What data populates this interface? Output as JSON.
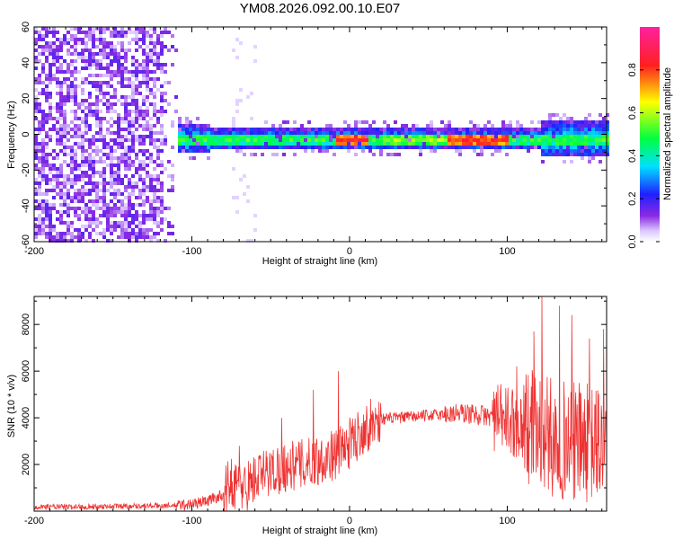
{
  "figure": {
    "title": "YM08.2026.092.00.10.E07"
  },
  "colors": {
    "snr_line": "#ee3333",
    "background": "#ffffff",
    "axis": "#000000",
    "colormap": [
      "#ffffff",
      "#dcc8ff",
      "#8a2be2",
      "#2020ff",
      "#00e0ff",
      "#00ff40",
      "#ffff00",
      "#ff2020",
      "#ff20a0"
    ]
  },
  "chart_data": [
    {
      "type": "heatmap",
      "name": "spectrogram",
      "xlabel": "Height of straight line (km)",
      "ylabel": "Frequency (Hz)",
      "xlim": [
        -200,
        163
      ],
      "ylim": [
        -60,
        60
      ],
      "xticks": [
        -200,
        -100,
        0,
        100
      ],
      "yticks": [
        -60,
        -40,
        -20,
        0,
        20,
        40,
        60
      ],
      "colorbar": {
        "label": "Normalized spectral amplitude",
        "range": [
          0.0,
          1.0
        ],
        "ticks": [
          0.0,
          0.2,
          0.4,
          0.6,
          0.8
        ]
      },
      "features": {
        "noise_region_x": [
          -200,
          -110
        ],
        "signal_band_center_hz": -2,
        "signal_band_half_width_hz": 6,
        "peak_amplitude_regions_x": [
          [
            -10,
            10
          ],
          [
            60,
            100
          ]
        ]
      }
    },
    {
      "type": "line",
      "name": "snr",
      "xlabel": "Height of straight line (km)",
      "ylabel": "SNR (10 * v/v)",
      "xlim": [
        -200,
        163
      ],
      "ylim": [
        0,
        9200
      ],
      "xticks": [
        -200,
        -100,
        0,
        100
      ],
      "yticks": [
        2000,
        4000,
        6000,
        8000
      ],
      "series": [
        {
          "name": "SNR",
          "x": [
            -200,
            -180,
            -160,
            -140,
            -120,
            -110,
            -100,
            -90,
            -80,
            -75,
            -70,
            -65,
            -60,
            -50,
            -40,
            -30,
            -20,
            -10,
            0,
            10,
            20,
            30,
            40,
            50,
            60,
            70,
            80,
            90,
            100,
            110,
            120,
            130,
            140,
            150,
            163
          ],
          "values": [
            200,
            180,
            200,
            220,
            230,
            250,
            300,
            450,
            700,
            1300,
            1000,
            1100,
            1400,
            1700,
            1900,
            2000,
            2200,
            2400,
            2900,
            3600,
            3950,
            4000,
            4050,
            4100,
            4150,
            4200,
            4150,
            4050,
            3900,
            3700,
            3400,
            3100,
            3000,
            2900,
            2800
          ],
          "spikes": [
            {
              "x": -70,
              "value": 2800
            },
            {
              "x": -43,
              "value": 4000
            },
            {
              "x": -23,
              "value": 5200
            },
            {
              "x": -7,
              "value": 6000
            },
            {
              "x": 93,
              "value": 4900
            },
            {
              "x": 106,
              "value": 6200
            },
            {
              "x": 117,
              "value": 7700
            },
            {
              "x": 122,
              "value": 9200
            },
            {
              "x": 133,
              "value": 8800
            },
            {
              "x": 141,
              "value": 8400
            },
            {
              "x": 152,
              "value": 7400
            },
            {
              "x": 161,
              "value": 7800
            }
          ]
        }
      ]
    }
  ]
}
